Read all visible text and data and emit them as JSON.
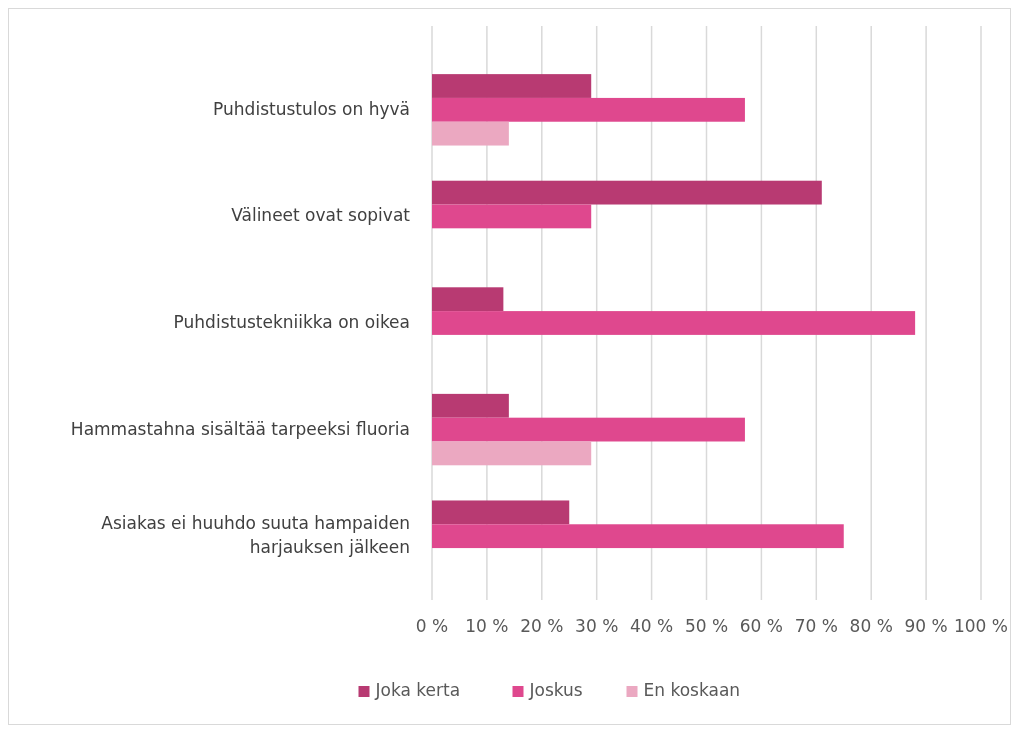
{
  "chart_data": {
    "type": "bar",
    "orientation": "horizontal",
    "categories": [
      "Puhdistustulos on hyvä",
      "Välineet ovat sopivat",
      "Puhdistustekniikka on oikea",
      "Hammastahna sisältää tarpeeksi fluoria",
      "Asiakas ei huuhdo suuta hampaiden harjauksen jälkeen"
    ],
    "series": [
      {
        "name": "Joka kerta",
        "color": "#b83a72",
        "values": [
          29,
          71,
          13,
          14,
          25
        ]
      },
      {
        "name": "Joskus",
        "color": "#df488e",
        "values": [
          57,
          29,
          88,
          57,
          75
        ]
      },
      {
        "name": "En koskaan",
        "color": "#eba8c1",
        "values": [
          14,
          null,
          null,
          29,
          null
        ]
      }
    ],
    "xlim": [
      0,
      100
    ],
    "xticks": [
      {
        "value": 0,
        "label": "0 %"
      },
      {
        "value": 10,
        "label": "10 %"
      },
      {
        "value": 20,
        "label": "20 %"
      },
      {
        "value": 30,
        "label": "30 %"
      },
      {
        "value": 40,
        "label": "40 %"
      },
      {
        "value": 50,
        "label": "50 %"
      },
      {
        "value": 60,
        "label": "60 %"
      },
      {
        "value": 70,
        "label": "70 %"
      },
      {
        "value": 80,
        "label": "80 %"
      },
      {
        "value": 90,
        "label": "90 %"
      },
      {
        "value": 100,
        "label": "100 %"
      }
    ],
    "grid": "x",
    "legend": "bottom"
  }
}
